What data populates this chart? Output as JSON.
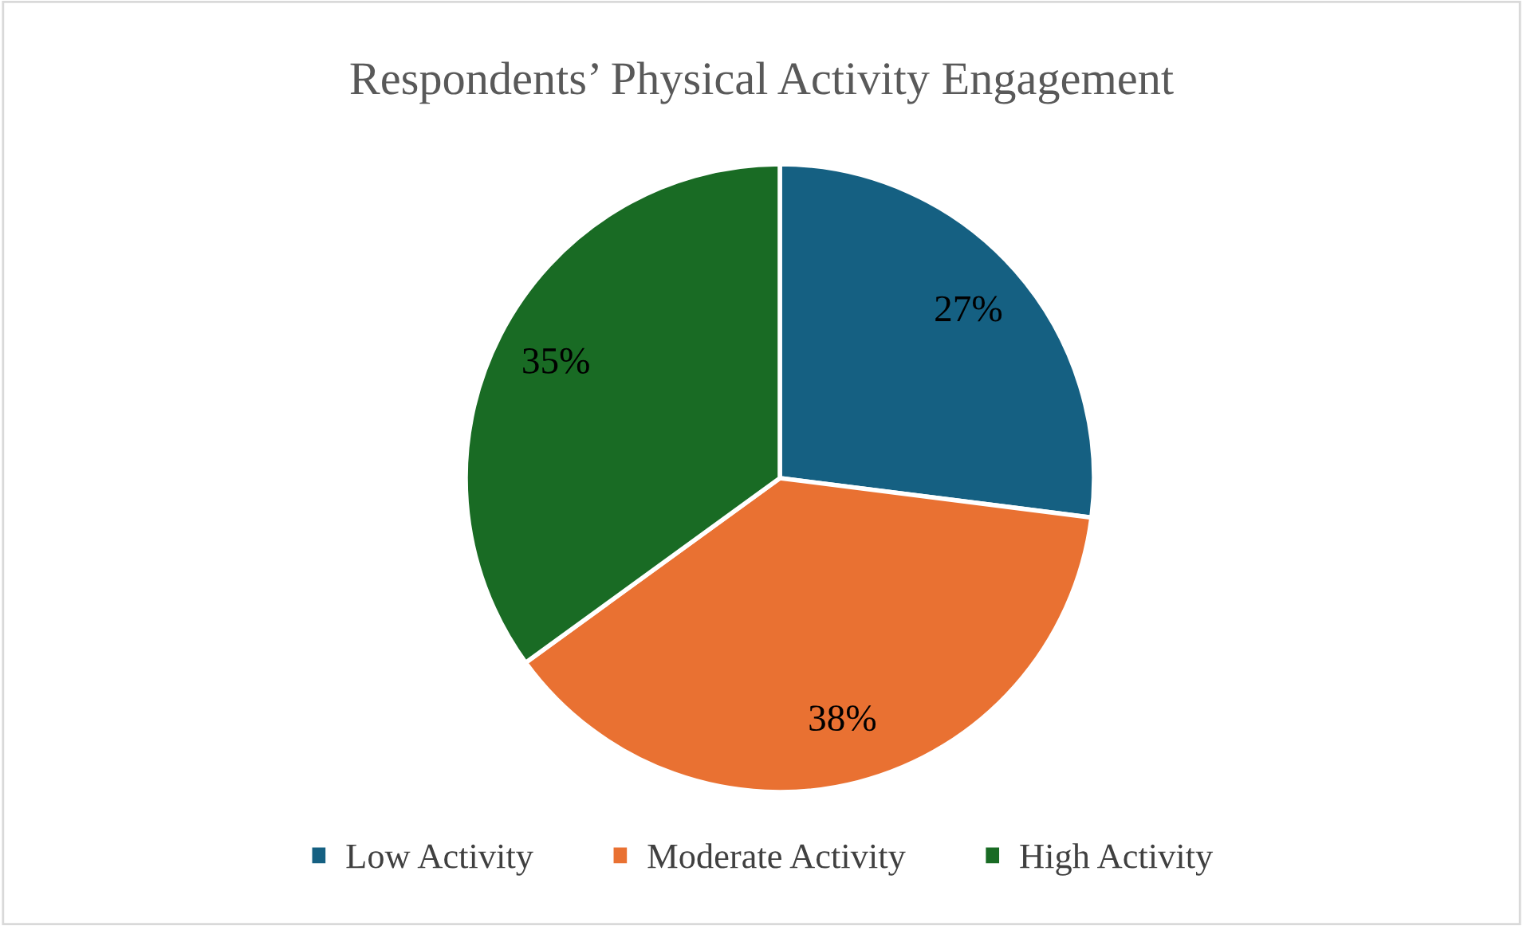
{
  "chart_data": {
    "type": "pie",
    "title": "Respondents’ Physical Activity Engagement",
    "categories": [
      "Low Activity",
      "Moderate Activity",
      "High Activity"
    ],
    "values": [
      27,
      38,
      35
    ],
    "colors": [
      "#156082",
      "#e97132",
      "#196b24"
    ],
    "value_labels": [
      "27%",
      "38%",
      "35%"
    ],
    "legend": "bottom"
  }
}
